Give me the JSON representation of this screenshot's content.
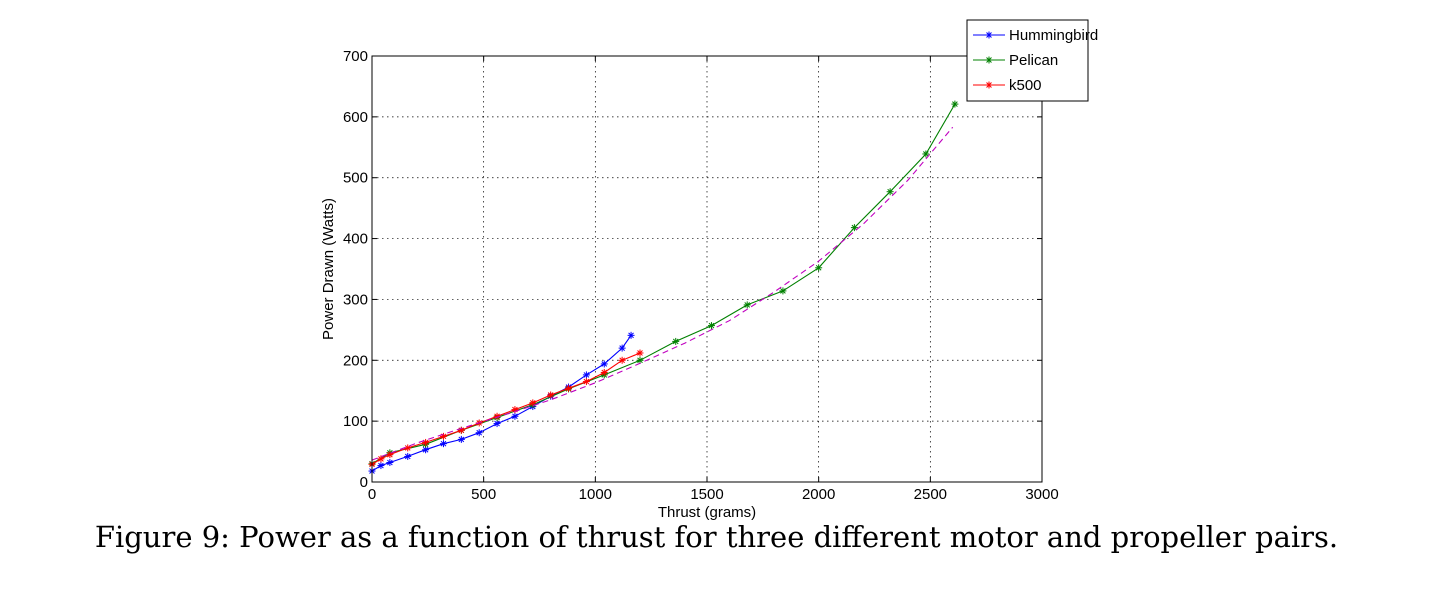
{
  "caption": "Figure 9: Power as a function of thrust for three different motor and propeller pairs.",
  "chart_data": {
    "type": "line",
    "xlabel": "Thrust (grams)",
    "ylabel": "Power Drawn (Watts)",
    "xlim": [
      0,
      3000
    ],
    "ylim": [
      0,
      700
    ],
    "xticks": [
      0,
      500,
      1000,
      1500,
      2000,
      2500,
      3000
    ],
    "yticks": [
      0,
      100,
      200,
      300,
      400,
      500,
      600,
      700
    ],
    "grid": true,
    "legend_position": "top-right",
    "series": [
      {
        "name": "Hummingbird",
        "color": "#0000ff",
        "marker": "asterisk",
        "x": [
          0,
          40,
          80,
          160,
          240,
          320,
          400,
          480,
          560,
          640,
          720,
          800,
          880,
          960,
          1040,
          1120,
          1160
        ],
        "y": [
          18,
          27,
          32,
          42,
          53,
          63,
          70,
          81,
          96,
          108,
          124,
          141,
          156,
          176,
          194,
          220,
          241
        ]
      },
      {
        "name": "Pelican",
        "color": "#008000",
        "marker": "asterisk",
        "x": [
          0,
          80,
          240,
          400,
          560,
          720,
          880,
          1040,
          1200,
          1360,
          1520,
          1680,
          1840,
          2000,
          2160,
          2320,
          2480,
          2610
        ],
        "y": [
          30,
          48,
          62,
          85,
          106,
          127,
          153,
          176,
          200,
          231,
          257,
          291,
          314,
          352,
          418,
          477,
          539,
          621
        ]
      },
      {
        "name": "k500",
        "color": "#ff0000",
        "marker": "asterisk",
        "x": [
          0,
          40,
          80,
          160,
          240,
          320,
          400,
          480,
          560,
          640,
          720,
          800,
          880,
          960,
          1040,
          1120,
          1200
        ],
        "y": [
          29,
          38,
          45,
          56,
          65,
          75,
          85,
          97,
          108,
          119,
          130,
          143,
          154,
          165,
          180,
          200,
          212
        ]
      },
      {
        "color": "#c000c0",
        "style": "dashed",
        "marker": "none",
        "x": [
          0,
          200,
          400,
          600,
          800,
          1000,
          1200,
          1400,
          1600,
          1800,
          2000,
          2200,
          2400,
          2600
        ],
        "y": [
          36,
          64,
          88,
          111,
          135,
          163,
          195,
          228,
          265,
          312,
          363,
          424,
          496,
          583
        ]
      }
    ]
  }
}
